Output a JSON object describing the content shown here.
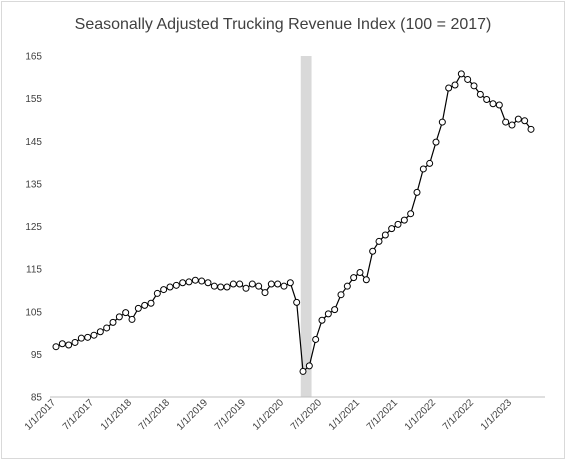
{
  "chart_data": {
    "type": "line",
    "title": "Seasonally Adjusted Trucking Revenue Index (100 = 2017)",
    "xlabel": "",
    "ylabel": "",
    "ylim": [
      85,
      165
    ],
    "yticks": [
      "85",
      "95",
      "105",
      "115",
      "125",
      "135",
      "145",
      "155",
      "165"
    ],
    "xticks": [
      "1/1/2017",
      "7/1/2017",
      "1/1/2018",
      "7/1/2018",
      "1/1/2019",
      "7/1/2019",
      "1/1/2020",
      "7/1/2020",
      "1/1/2021",
      "7/1/2021",
      "1/1/2022",
      "7/1/2022",
      "1/1/2023"
    ],
    "grid": false,
    "legend": "none",
    "line_color": "#000000",
    "marker_fill": "#ffffff",
    "shaded_period": {
      "start": "2020-04",
      "end": "2020-05",
      "color": "#d9d9d9"
    },
    "series": [
      {
        "x": [
          "2017-01",
          "2017-02",
          "2017-03",
          "2017-04",
          "2017-05",
          "2017-06",
          "2017-07",
          "2017-08",
          "2017-09",
          "2017-10",
          "2017-11",
          "2017-12",
          "2018-01",
          "2018-02",
          "2018-03",
          "2018-04",
          "2018-05",
          "2018-06",
          "2018-07",
          "2018-08",
          "2018-09",
          "2018-10",
          "2018-11",
          "2018-12",
          "2019-01",
          "2019-02",
          "2019-03",
          "2019-04",
          "2019-05",
          "2019-06",
          "2019-07",
          "2019-08",
          "2019-09",
          "2019-10",
          "2019-11",
          "2019-12",
          "2020-01",
          "2020-02",
          "2020-03",
          "2020-04",
          "2020-05",
          "2020-06",
          "2020-07",
          "2020-08",
          "2020-09",
          "2020-10",
          "2020-11",
          "2020-12",
          "2021-01",
          "2021-02",
          "2021-03",
          "2021-04",
          "2021-05",
          "2021-06",
          "2021-07",
          "2021-08",
          "2021-09",
          "2021-10",
          "2021-11",
          "2021-12",
          "2022-01",
          "2022-02",
          "2022-03",
          "2022-04",
          "2022-05",
          "2022-06",
          "2022-07",
          "2022-08",
          "2022-09",
          "2022-10",
          "2022-11",
          "2022-12",
          "2023-01",
          "2023-02",
          "2023-03",
          "2023-04"
        ],
        "values": [
          96.8,
          97.5,
          97.2,
          97.8,
          98.8,
          99.0,
          99.5,
          100.3,
          101.2,
          102.5,
          103.8,
          104.8,
          103.2,
          105.8,
          106.5,
          107.0,
          109.3,
          110.2,
          110.8,
          111.2,
          111.8,
          112.0,
          112.4,
          112.2,
          111.8,
          111.0,
          110.8,
          110.8,
          111.5,
          111.5,
          110.5,
          111.5,
          111.0,
          109.5,
          111.5,
          111.5,
          111.0,
          111.8,
          107.2,
          91.0,
          92.3,
          98.5,
          103.0,
          104.5,
          105.5,
          109.0,
          111.0,
          113.0,
          114.2,
          112.5,
          119.2,
          121.5,
          123.0,
          124.5,
          125.5,
          126.5,
          128.0,
          133.0,
          138.5,
          139.8,
          144.8,
          149.5,
          157.5,
          158.2,
          160.8,
          159.5,
          158.0,
          156.0,
          154.8,
          153.8,
          153.5,
          149.5,
          148.8,
          150.2,
          149.8,
          147.8
        ]
      }
    ]
  }
}
